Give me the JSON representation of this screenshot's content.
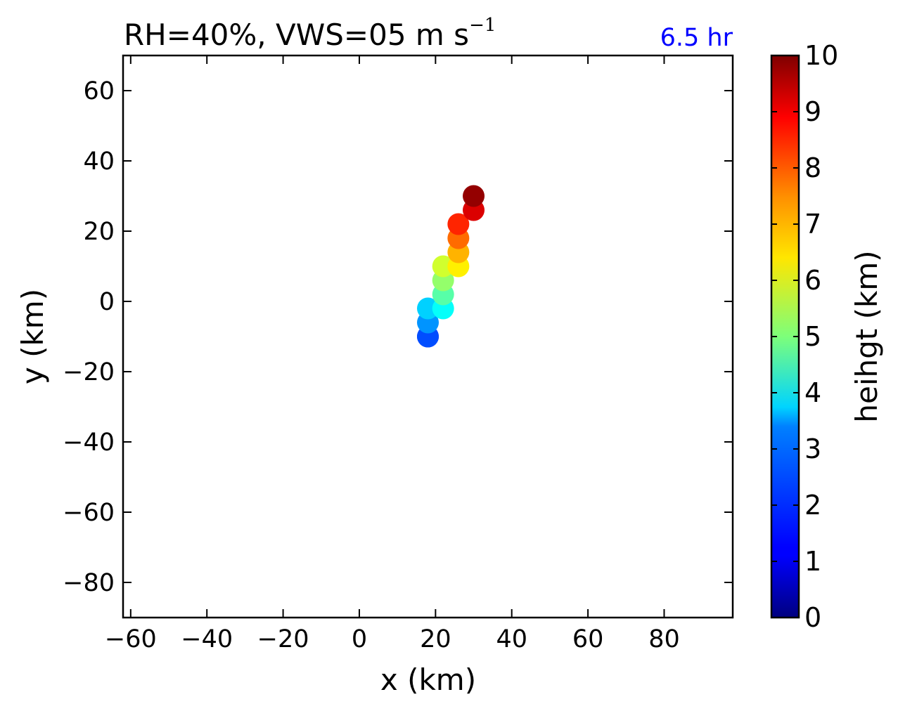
{
  "chart_data": {
    "type": "scatter",
    "title": {
      "main": "RH=40%, VWS=05 m s",
      "superscript": "−1"
    },
    "time_label": "6.5 hr",
    "xlabel": "x (km)",
    "ylabel": "y (km)",
    "xlim": [
      -62,
      98
    ],
    "ylim": [
      -90,
      70
    ],
    "xticks": [
      -60,
      -40,
      -20,
      0,
      20,
      40,
      60,
      80
    ],
    "yticks": [
      60,
      40,
      20,
      0,
      -20,
      -40,
      -60,
      -80
    ],
    "grid": false,
    "colorbar": {
      "label": "heihgt (km)",
      "colormap": "jet",
      "range": [
        0,
        10
      ],
      "ticks": [
        0,
        1,
        2,
        3,
        4,
        5,
        6,
        7,
        8,
        9,
        10
      ]
    },
    "points": [
      {
        "x": 18,
        "y": -10,
        "height": 1.5
      },
      {
        "x": 18,
        "y": -10,
        "height": 2.0
      },
      {
        "x": 18,
        "y": -6,
        "height": 2.7
      },
      {
        "x": 18,
        "y": -2,
        "height": 3.3
      },
      {
        "x": 22,
        "y": -2,
        "height": 3.8
      },
      {
        "x": 22,
        "y": 2,
        "height": 4.6
      },
      {
        "x": 22,
        "y": 6,
        "height": 5.2
      },
      {
        "x": 22,
        "y": 10,
        "height": 5.8
      },
      {
        "x": 26,
        "y": 10,
        "height": 6.4
      },
      {
        "x": 26,
        "y": 14,
        "height": 7.0
      },
      {
        "x": 26,
        "y": 18,
        "height": 7.7
      },
      {
        "x": 26,
        "y": 22,
        "height": 8.4
      },
      {
        "x": 30,
        "y": 26,
        "height": 9.1
      },
      {
        "x": 30,
        "y": 30,
        "height": 9.8
      }
    ]
  }
}
